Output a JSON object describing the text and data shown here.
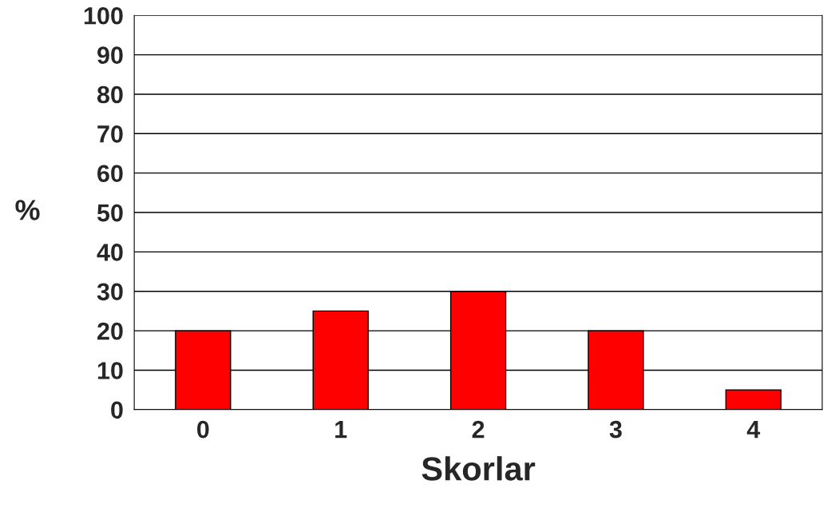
{
  "chart_data": {
    "type": "bar",
    "xlabel": "Skorlar",
    "ylabel": "%",
    "categories": [
      "0",
      "1",
      "2",
      "3",
      "4"
    ],
    "values": [
      20,
      25,
      30,
      20,
      5
    ],
    "color": "#ff0000",
    "ylim": [
      0,
      100
    ],
    "yticks": [
      0,
      10,
      20,
      30,
      40,
      50,
      60,
      70,
      80,
      90,
      100
    ],
    "grid": "y"
  }
}
